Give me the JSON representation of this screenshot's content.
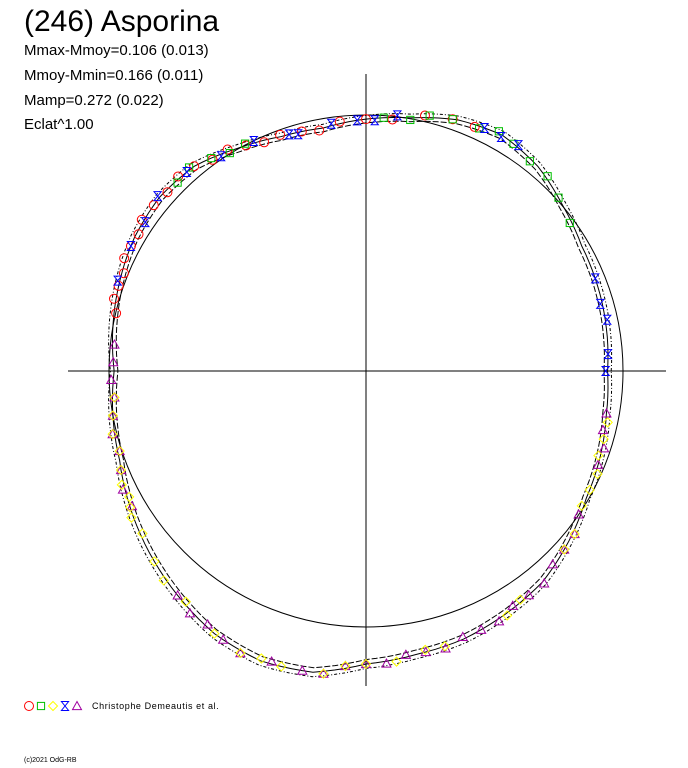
{
  "title": "(246) Asporina",
  "stats": [
    "Mmax-Mmoy=0.106 (0.013)",
    "Mmoy-Mmin=0.166 (0.011)",
    "Mamp=0.272 (0.022)",
    "Eclat^1.00"
  ],
  "legend": {
    "text": "Christophe Demeautis et al.",
    "markers": [
      "circle",
      "square",
      "diamond",
      "hourglass",
      "triangle"
    ]
  },
  "copyright": "(c)2021 OdG-RB",
  "colors": {
    "circle": "#ff0000",
    "square": "#00c000",
    "diamond": "#ffff00",
    "hourglass": "#0000ff",
    "triangle": "#a000a0",
    "axes": "#000000",
    "curve": "#000000"
  },
  "chart_data": {
    "type": "scatter",
    "projection": "polar",
    "unit": "relative magnitude",
    "mean_radius": 1.0,
    "amplitude": 0.272,
    "m_max_minus_m_mean": 0.106,
    "m_mean_minus_m_min": 0.166,
    "reference_circle_radius": 1.0,
    "fit_curve": {
      "angle_deg": [
        0,
        10,
        20,
        30,
        40,
        50,
        60,
        70,
        80,
        90,
        100,
        110,
        120,
        130,
        140,
        150,
        160,
        170,
        180,
        190,
        200,
        210,
        220,
        230,
        240,
        250,
        260,
        270,
        280,
        290,
        300,
        310,
        320,
        330,
        340,
        350
      ],
      "radius": [
        0.94,
        0.95,
        0.96,
        0.97,
        1.0,
        1.04,
        1.06,
        1.04,
        1.0,
        0.98,
        0.96,
        0.97,
        1.0,
        1.04,
        1.05,
        1.04,
        1.02,
        1.0,
        0.98,
        1.0,
        1.02,
        1.06,
        1.1,
        1.14,
        1.18,
        1.2,
        1.19,
        1.14,
        1.12,
        1.11,
        1.09,
        1.07,
        1.03,
        0.99,
        0.97,
        0.95
      ]
    },
    "series": [
      {
        "marker": "circle",
        "angle_deg": [
          66,
          71,
          77,
          84,
          90,
          96,
          101,
          105,
          110,
          114,
          118,
          122,
          126,
          130,
          134,
          138,
          142,
          146,
          149,
          152,
          155,
          158,
          161,
          164,
          167
        ]
      },
      {
        "marker": "square",
        "angle_deg": [
          36,
          42,
          47,
          52,
          57,
          61,
          65,
          71,
          76,
          80,
          86,
          118,
          122,
          126,
          131,
          135
        ]
      },
      {
        "marker": "hourglass",
        "angle_deg": [
          0,
          4,
          12,
          16,
          22,
          56,
          60,
          64,
          83,
          88,
          92,
          98,
          106,
          108,
          116,
          124,
          132,
          140,
          146,
          152,
          160
        ]
      },
      {
        "marker": "triangle",
        "angle_deg": [
          174,
          178,
          182,
          186,
          190,
          194,
          198,
          202,
          206,
          210,
          230,
          234,
          238,
          242,
          246,
          252,
          258,
          262,
          266,
          270,
          274,
          278,
          282,
          286,
          290,
          294,
          298,
          302,
          306,
          310,
          314,
          318,
          322,
          326,
          338,
          342,
          346,
          350
        ]
      },
      {
        "marker": "diamond",
        "angle_deg": [
          186,
          190,
          194,
          198,
          202,
          205,
          208,
          210,
          212,
          216,
          222,
          226,
          232,
          240,
          246,
          250,
          254,
          262,
          266,
          270,
          276,
          282,
          286,
          300,
          304,
          318,
          322,
          328,
          332,
          336,
          340,
          344,
          348
        ]
      }
    ]
  }
}
